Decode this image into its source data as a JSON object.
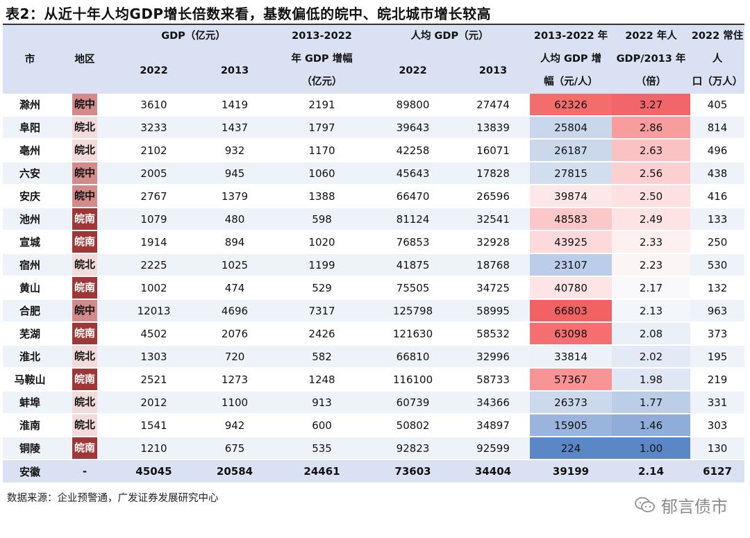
{
  "title": "表2：从近十年人均GDP增长倍数来看，基数偏低的皖中、皖北城市增长较高",
  "headers": {
    "city": "市",
    "region": "地区",
    "gdp": "GDP（亿元）",
    "y2022": "2022",
    "y2013": "2013",
    "gdp_growth_1": "2013-2022",
    "gdp_growth_2": "年 GDP 增幅",
    "gdp_growth_3": "（亿元）",
    "pc_gdp": "人均 GDP（元）",
    "pc_growth_1": "2013-2022 年",
    "pc_growth_2": "人均 GDP 增",
    "pc_growth_3": "幅（元/人）",
    "ratio_1": "2022 年人",
    "ratio_2": "GDP/2013 年",
    "ratio_3": "（倍）",
    "pop_1": "2022 常住人",
    "pop_2": "口（万人）"
  },
  "region_colors": {
    "皖中": "#d38a8b",
    "皖北": "#f3dadb",
    "皖南": "#9e3836"
  },
  "rows": [
    {
      "city": "滁州",
      "region": "皖中",
      "gdp22": "3610",
      "gdp13": "1419",
      "gdp_inc": "2191",
      "pc22": "89800",
      "pc13": "27474",
      "pc_inc": "62326",
      "ratio": "3.27",
      "pop": "405",
      "pc_inc_color": "#f46d6d",
      "ratio_color": "#f1666a"
    },
    {
      "city": "阜阳",
      "region": "皖北",
      "gdp22": "3233",
      "gdp13": "1437",
      "gdp_inc": "1797",
      "pc22": "39643",
      "pc13": "13839",
      "pc_inc": "25804",
      "ratio": "2.86",
      "pop": "814",
      "pc_inc_color": "#c9d7ec",
      "ratio_color": "#f89c9e"
    },
    {
      "city": "亳州",
      "region": "皖北",
      "gdp22": "2102",
      "gdp13": "932",
      "gdp_inc": "1170",
      "pc22": "42258",
      "pc13": "16071",
      "pc_inc": "26187",
      "ratio": "2.63",
      "pop": "496",
      "pc_inc_color": "#cbd8ec",
      "ratio_color": "#fbc2c4"
    },
    {
      "city": "六安",
      "region": "皖中",
      "gdp22": "2005",
      "gdp13": "945",
      "gdp_inc": "1060",
      "pc22": "45643",
      "pc13": "17828",
      "pc_inc": "27815",
      "ratio": "2.56",
      "pop": "438",
      "pc_inc_color": "#d2def0",
      "ratio_color": "#fcd0d1"
    },
    {
      "city": "安庆",
      "region": "皖中",
      "gdp22": "2767",
      "gdp13": "1379",
      "gdp_inc": "1388",
      "pc22": "66470",
      "pc13": "26596",
      "pc_inc": "39874",
      "ratio": "2.50",
      "pop": "416",
      "pc_inc_color": "#fde7e8",
      "ratio_color": "#fde0e1"
    },
    {
      "city": "池州",
      "region": "皖南",
      "gdp22": "1079",
      "gdp13": "480",
      "gdp_inc": "598",
      "pc22": "81124",
      "pc13": "32541",
      "pc_inc": "48583",
      "ratio": "2.49",
      "pop": "133",
      "pc_inc_color": "#fbc7c9",
      "ratio_color": "#fde3e4"
    },
    {
      "city": "宣城",
      "region": "皖南",
      "gdp22": "1914",
      "gdp13": "894",
      "gdp_inc": "1020",
      "pc22": "76853",
      "pc13": "32928",
      "pc_inc": "43925",
      "ratio": "2.33",
      "pop": "250",
      "pc_inc_color": "#fcdadb",
      "ratio_color": "#fdf0f1"
    },
    {
      "city": "宿州",
      "region": "皖北",
      "gdp22": "2225",
      "gdp13": "1025",
      "gdp_inc": "1199",
      "pc22": "41875",
      "pc13": "18768",
      "pc_inc": "23107",
      "ratio": "2.23",
      "pop": "530",
      "pc_inc_color": "#bccdea",
      "ratio_color": "#fcf5f6"
    },
    {
      "city": "黄山",
      "region": "皖南",
      "gdp22": "1002",
      "gdp13": "474",
      "gdp_inc": "529",
      "pc22": "75505",
      "pc13": "34725",
      "pc_inc": "40780",
      "ratio": "2.17",
      "pop": "132",
      "pc_inc_color": "#fde4e5",
      "ratio_color": "#f9f9fc"
    },
    {
      "city": "合肥",
      "region": "皖中",
      "gdp22": "12013",
      "gdp13": "4696",
      "gdp_inc": "7317",
      "pc22": "125798",
      "pc13": "58995",
      "pc_inc": "66803",
      "ratio": "2.13",
      "pop": "963",
      "pc_inc_color": "#f26163",
      "ratio_color": "#f3f6fb"
    },
    {
      "city": "芜湖",
      "region": "皖南",
      "gdp22": "4502",
      "gdp13": "2076",
      "gdp_inc": "2426",
      "pc22": "121630",
      "pc13": "58532",
      "pc_inc": "63098",
      "ratio": "2.08",
      "pop": "373",
      "pc_inc_color": "#f56f71",
      "ratio_color": "#eaf0f8"
    },
    {
      "city": "淮北",
      "region": "皖北",
      "gdp22": "1303",
      "gdp13": "720",
      "gdp_inc": "582",
      "pc22": "66810",
      "pc13": "32996",
      "pc_inc": "33814",
      "ratio": "2.02",
      "pop": "195",
      "pc_inc_color": "#edf1f8",
      "ratio_color": "#e3eaf6"
    },
    {
      "city": "马鞍山",
      "region": "皖南",
      "gdp22": "2521",
      "gdp13": "1273",
      "gdp_inc": "1248",
      "pc22": "116100",
      "pc13": "58733",
      "pc_inc": "57367",
      "ratio": "1.98",
      "pop": "219",
      "pc_inc_color": "#f89396",
      "ratio_color": "#dfe7f4"
    },
    {
      "city": "蚌埠",
      "region": "皖北",
      "gdp22": "2012",
      "gdp13": "1100",
      "gdp_inc": "913",
      "pc22": "60739",
      "pc13": "34366",
      "pc_inc": "26373",
      "ratio": "1.77",
      "pop": "331",
      "pc_inc_color": "#ccd9ed",
      "ratio_color": "#bccde8"
    },
    {
      "city": "淮南",
      "region": "皖北",
      "gdp22": "1541",
      "gdp13": "942",
      "gdp_inc": "600",
      "pc22": "50802",
      "pc13": "34897",
      "pc_inc": "15905",
      "ratio": "1.46",
      "pop": "303",
      "pc_inc_color": "#9bb4dd",
      "ratio_color": "#90add9"
    },
    {
      "city": "铜陵",
      "region": "皖南",
      "gdp22": "1210",
      "gdp13": "675",
      "gdp_inc": "535",
      "pc22": "92823",
      "pc13": "92599",
      "pc_inc": "224",
      "ratio": "1.00",
      "pop": "130",
      "pc_inc_color": "#5b87c6",
      "ratio_color": "#5b87c6"
    }
  ],
  "total": {
    "city": "安徽",
    "region": "-",
    "gdp22": "45045",
    "gdp13": "20584",
    "gdp_inc": "24461",
    "pc22": "73603",
    "pc13": "34404",
    "pc_inc": "39199",
    "ratio": "2.14",
    "pop": "6127"
  },
  "source": "数据来源：企业预警通，广发证券发展研究中心",
  "brand": "郁言债市",
  "brand_icon": "wechat-icon"
}
